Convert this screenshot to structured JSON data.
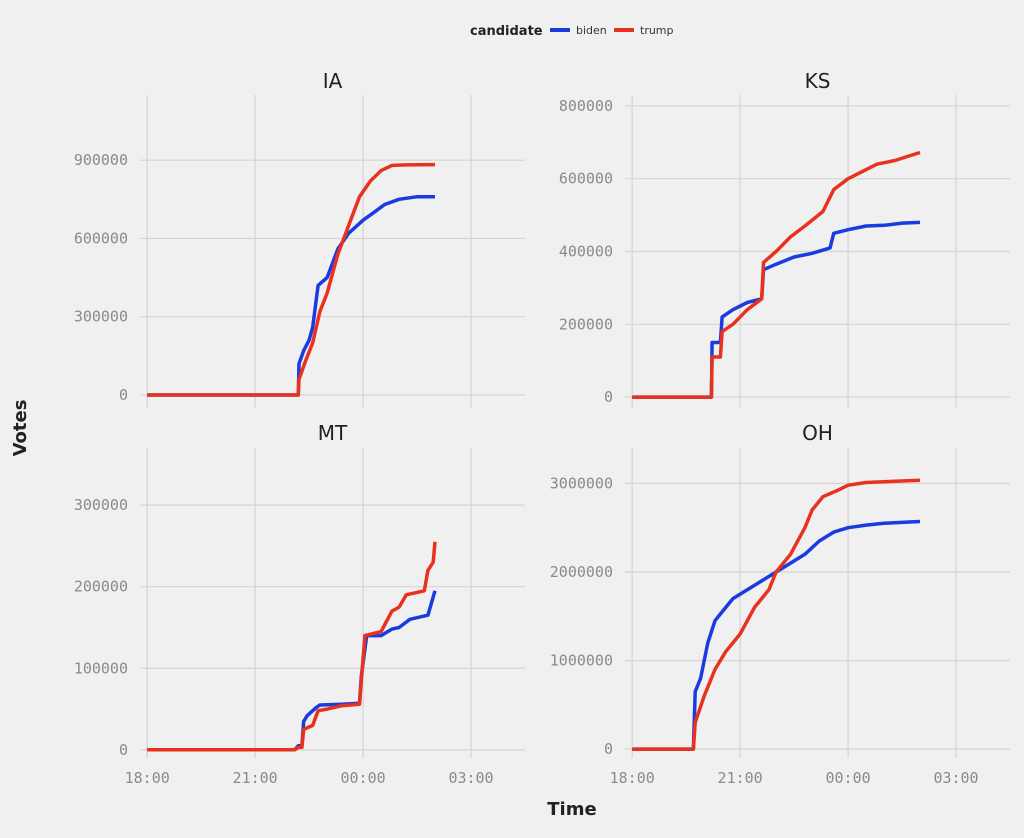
{
  "legend": {
    "title": "candidate",
    "entries": [
      {
        "label": "biden",
        "color": "#1a3be0"
      },
      {
        "label": "trump",
        "color": "#e8321e"
      }
    ]
  },
  "xlabel": "Time",
  "ylabel": "Votes",
  "chart_data": [
    {
      "type": "line",
      "title": "IA",
      "x_ticks": [
        "18:00",
        "21:00",
        "00:00",
        "03:00"
      ],
      "x_range_hours": [
        17.8,
        28.5
      ],
      "ylim": [
        -50000,
        1150000
      ],
      "y_ticks": [
        0,
        300000,
        600000,
        900000
      ],
      "y_tick_labels": [
        "0",
        "300000",
        "600000",
        "900000"
      ],
      "series": [
        {
          "name": "biden",
          "color": "#1a3be0",
          "points": [
            [
              18.0,
              0
            ],
            [
              22.2,
              0
            ],
            [
              22.22,
              120000
            ],
            [
              22.35,
              170000
            ],
            [
              22.5,
              210000
            ],
            [
              22.6,
              260000
            ],
            [
              22.75,
              420000
            ],
            [
              23.0,
              450000
            ],
            [
              23.3,
              560000
            ],
            [
              23.6,
              620000
            ],
            [
              24.0,
              670000
            ],
            [
              24.3,
              700000
            ],
            [
              24.6,
              730000
            ],
            [
              25.0,
              750000
            ],
            [
              25.5,
              760000
            ],
            [
              26.0,
              760000
            ]
          ]
        },
        {
          "name": "trump",
          "color": "#e8321e",
          "points": [
            [
              18.0,
              0
            ],
            [
              22.2,
              0
            ],
            [
              22.22,
              60000
            ],
            [
              22.4,
              130000
            ],
            [
              22.6,
              200000
            ],
            [
              22.8,
              320000
            ],
            [
              23.0,
              390000
            ],
            [
              23.3,
              540000
            ],
            [
              23.6,
              650000
            ],
            [
              23.9,
              760000
            ],
            [
              24.2,
              820000
            ],
            [
              24.5,
              860000
            ],
            [
              24.8,
              880000
            ],
            [
              25.2,
              882000
            ],
            [
              26.0,
              883000
            ]
          ]
        }
      ]
    },
    {
      "type": "line",
      "title": "KS",
      "x_ticks": [
        "18:00",
        "21:00",
        "00:00",
        "03:00"
      ],
      "x_range_hours": [
        17.8,
        28.5
      ],
      "ylim": [
        -30000,
        830000
      ],
      "y_ticks": [
        0,
        200000,
        400000,
        600000,
        800000
      ],
      "y_tick_labels": [
        "0",
        "200000",
        "400000",
        "600000",
        "800000"
      ],
      "series": [
        {
          "name": "biden",
          "color": "#1a3be0",
          "points": [
            [
              18.0,
              0
            ],
            [
              20.2,
              0
            ],
            [
              20.22,
              150000
            ],
            [
              20.45,
              150000
            ],
            [
              20.5,
              220000
            ],
            [
              20.8,
              240000
            ],
            [
              21.2,
              260000
            ],
            [
              21.6,
              270000
            ],
            [
              21.65,
              350000
            ],
            [
              22.0,
              365000
            ],
            [
              22.5,
              385000
            ],
            [
              23.0,
              395000
            ],
            [
              23.5,
              410000
            ],
            [
              23.6,
              450000
            ],
            [
              24.0,
              460000
            ],
            [
              24.5,
              470000
            ],
            [
              25.0,
              472000
            ],
            [
              25.5,
              478000
            ],
            [
              26.0,
              480000
            ]
          ]
        },
        {
          "name": "trump",
          "color": "#e8321e",
          "points": [
            [
              18.0,
              0
            ],
            [
              20.2,
              0
            ],
            [
              20.22,
              110000
            ],
            [
              20.45,
              110000
            ],
            [
              20.5,
              180000
            ],
            [
              20.8,
              200000
            ],
            [
              21.2,
              240000
            ],
            [
              21.6,
              270000
            ],
            [
              21.65,
              370000
            ],
            [
              22.0,
              400000
            ],
            [
              22.4,
              440000
            ],
            [
              22.8,
              470000
            ],
            [
              23.3,
              510000
            ],
            [
              23.6,
              570000
            ],
            [
              24.0,
              600000
            ],
            [
              24.4,
              620000
            ],
            [
              24.8,
              640000
            ],
            [
              25.3,
              650000
            ],
            [
              26.0,
              672000
            ]
          ]
        }
      ]
    },
    {
      "type": "line",
      "title": "MT",
      "x_ticks": [
        "18:00",
        "21:00",
        "00:00",
        "03:00"
      ],
      "x_range_hours": [
        17.8,
        28.5
      ],
      "ylim": [
        -10000,
        370000
      ],
      "y_ticks": [
        0,
        100000,
        200000,
        300000
      ],
      "y_tick_labels": [
        "0",
        "100000",
        "200000",
        "300000"
      ],
      "series": [
        {
          "name": "biden",
          "color": "#1a3be0",
          "points": [
            [
              18.0,
              0
            ],
            [
              22.1,
              0
            ],
            [
              22.2,
              5000
            ],
            [
              22.3,
              5000
            ],
            [
              22.35,
              35000
            ],
            [
              22.45,
              42000
            ],
            [
              22.7,
              52000
            ],
            [
              22.8,
              55000
            ],
            [
              23.4,
              56000
            ],
            [
              23.9,
              57000
            ],
            [
              23.95,
              90000
            ],
            [
              24.1,
              140000
            ],
            [
              24.5,
              140000
            ],
            [
              24.8,
              148000
            ],
            [
              25.0,
              150000
            ],
            [
              25.3,
              160000
            ],
            [
              25.8,
              165000
            ],
            [
              26.0,
              195000
            ]
          ]
        },
        {
          "name": "trump",
          "color": "#e8321e",
          "points": [
            [
              18.0,
              0
            ],
            [
              22.1,
              0
            ],
            [
              22.2,
              3000
            ],
            [
              22.3,
              3000
            ],
            [
              22.35,
              25000
            ],
            [
              22.6,
              30000
            ],
            [
              22.75,
              48000
            ],
            [
              23.0,
              50000
            ],
            [
              23.4,
              54000
            ],
            [
              23.9,
              56000
            ],
            [
              23.95,
              85000
            ],
            [
              24.05,
              140000
            ],
            [
              24.5,
              145000
            ],
            [
              24.8,
              170000
            ],
            [
              25.0,
              175000
            ],
            [
              25.2,
              190000
            ],
            [
              25.7,
              195000
            ],
            [
              25.8,
              220000
            ],
            [
              25.95,
              230000
            ],
            [
              26.0,
              255000
            ]
          ]
        }
      ]
    },
    {
      "type": "line",
      "title": "OH",
      "x_ticks": [
        "18:00",
        "21:00",
        "00:00",
        "03:00"
      ],
      "x_range_hours": [
        17.8,
        28.5
      ],
      "ylim": [
        -100000,
        3400000
      ],
      "y_ticks": [
        0,
        1000000,
        2000000,
        3000000
      ],
      "y_tick_labels": [
        "0",
        "1000000",
        "2000000",
        "3000000"
      ],
      "series": [
        {
          "name": "biden",
          "color": "#1a3be0",
          "points": [
            [
              18.0,
              0
            ],
            [
              19.7,
              0
            ],
            [
              19.75,
              650000
            ],
            [
              19.9,
              800000
            ],
            [
              20.1,
              1200000
            ],
            [
              20.3,
              1450000
            ],
            [
              20.5,
              1550000
            ],
            [
              20.8,
              1700000
            ],
            [
              21.2,
              1800000
            ],
            [
              21.6,
              1900000
            ],
            [
              22.0,
              2000000
            ],
            [
              22.4,
              2100000
            ],
            [
              22.8,
              2200000
            ],
            [
              23.2,
              2350000
            ],
            [
              23.6,
              2450000
            ],
            [
              24.0,
              2500000
            ],
            [
              24.5,
              2530000
            ],
            [
              25.0,
              2550000
            ],
            [
              26.0,
              2570000
            ]
          ]
        },
        {
          "name": "trump",
          "color": "#e8321e",
          "points": [
            [
              18.0,
              0
            ],
            [
              19.7,
              0
            ],
            [
              19.75,
              300000
            ],
            [
              20.0,
              600000
            ],
            [
              20.3,
              900000
            ],
            [
              20.6,
              1100000
            ],
            [
              21.0,
              1300000
            ],
            [
              21.4,
              1600000
            ],
            [
              21.8,
              1800000
            ],
            [
              22.0,
              2000000
            ],
            [
              22.4,
              2200000
            ],
            [
              22.8,
              2500000
            ],
            [
              23.0,
              2700000
            ],
            [
              23.3,
              2850000
            ],
            [
              23.7,
              2920000
            ],
            [
              24.0,
              2980000
            ],
            [
              24.5,
              3010000
            ],
            [
              25.0,
              3020000
            ],
            [
              26.0,
              3035000
            ]
          ]
        }
      ]
    }
  ]
}
